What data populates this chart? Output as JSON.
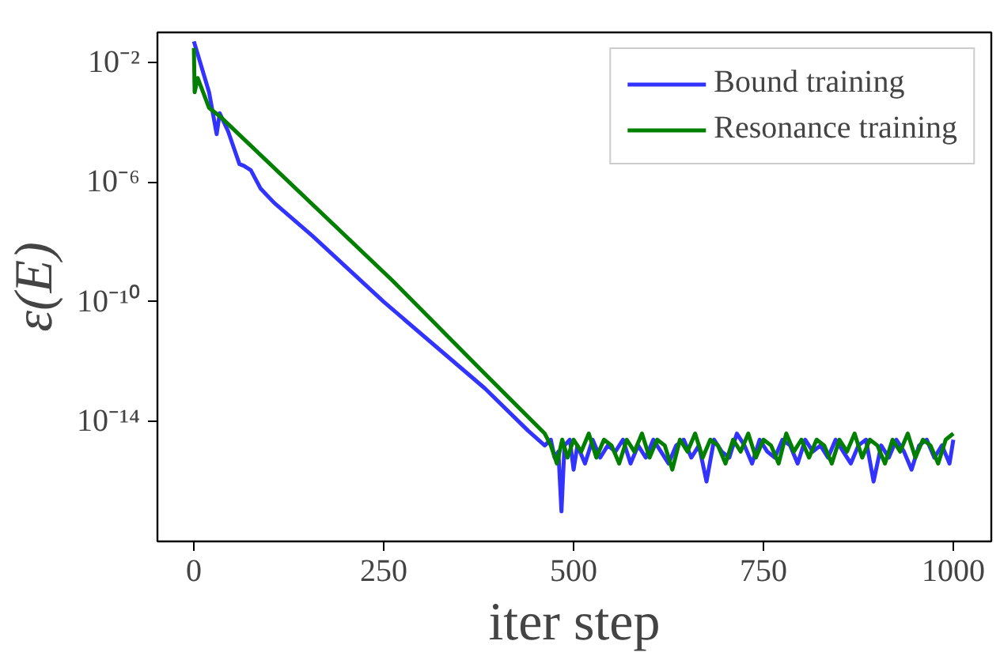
{
  "chart_data": {
    "type": "line",
    "xlabel": "iter step",
    "ylabel": "ε(E)",
    "log": "y",
    "legend": "top right",
    "grid": false,
    "marker": "none",
    "line_style": "solid",
    "xlim": [
      -48,
      1050
    ],
    "ylim": [
      1e-18,
      0.1
    ],
    "xticks": [
      0,
      250,
      500,
      750,
      1000
    ],
    "yticks": [
      {
        "value": 0.01,
        "label": "10⁻²"
      },
      {
        "value": 1e-06,
        "label": "10⁻⁶"
      },
      {
        "value": 1e-10,
        "label": "10⁻¹⁰"
      },
      {
        "value": 1e-14,
        "label": "10⁻¹⁴"
      }
    ],
    "series": [
      {
        "name": "Bound training",
        "color": "#3333ff",
        "x": [
          0,
          20,
          30,
          34,
          45,
          60,
          66,
          75,
          88,
          106,
          156,
          250,
          383,
          440,
          462,
          470,
          475,
          480,
          484,
          488,
          495,
          500,
          505,
          515,
          525,
          535,
          545,
          555,
          565,
          575,
          585,
          595,
          605,
          615,
          625,
          635,
          645,
          655,
          665,
          675,
          685,
          695,
          705,
          715,
          725,
          735,
          745,
          755,
          765,
          775,
          785,
          795,
          805,
          815,
          825,
          835,
          845,
          855,
          865,
          875,
          885,
          895,
          905,
          915,
          925,
          935,
          945,
          955,
          965,
          975,
          985,
          995,
          1000
        ],
        "values": [
          0.05,
          0.001,
          4e-05,
          0.0002,
          5e-05,
          4e-06,
          3.5e-06,
          2.5e-06,
          6e-07,
          2e-07,
          1.6e-08,
          1e-10,
          1.3e-13,
          5e-15,
          1.6e-15,
          2.5e-15,
          6.3e-16,
          1e-15,
          1e-17,
          1.6e-15,
          2.5e-15,
          2.5e-16,
          1.6e-15,
          4e-16,
          2.5e-15,
          6.3e-16,
          1.6e-15,
          1e-15,
          2.5e-15,
          4e-16,
          1.6e-15,
          6.3e-16,
          2.5e-15,
          1e-15,
          4e-16,
          1.6e-15,
          2.5e-15,
          6.3e-16,
          1.6e-15,
          1e-16,
          2.5e-15,
          1e-15,
          6.3e-16,
          4e-15,
          1.6e-15,
          4e-16,
          2.5e-15,
          1e-15,
          6.3e-16,
          2.5e-15,
          1.6e-15,
          4e-16,
          2.5e-15,
          1e-15,
          1.6e-15,
          6.3e-16,
          2.5e-15,
          1e-15,
          4e-16,
          1.6e-15,
          2.5e-15,
          1e-16,
          1.6e-15,
          6.3e-16,
          2.5e-15,
          1e-15,
          2.5e-16,
          1.6e-15,
          2.5e-15,
          6.3e-16,
          1.6e-15,
          4e-16,
          2.5e-15
        ]
      },
      {
        "name": "Resonance training",
        "color": "#007f00",
        "x": [
          0,
          1,
          5,
          20,
          34,
          262,
          383,
          462,
          470,
          478,
          485,
          492,
          500,
          510,
          520,
          530,
          540,
          550,
          560,
          570,
          580,
          590,
          600,
          610,
          620,
          630,
          640,
          650,
          660,
          670,
          680,
          690,
          700,
          710,
          720,
          730,
          740,
          750,
          760,
          770,
          780,
          790,
          800,
          810,
          820,
          830,
          840,
          850,
          860,
          870,
          880,
          890,
          900,
          910,
          920,
          930,
          940,
          950,
          960,
          970,
          980,
          990,
          1000
        ],
        "values": [
          0.03,
          0.001,
          0.003,
          0.0003,
          0.00016,
          5e-10,
          4e-13,
          4e-15,
          1.6e-15,
          4e-16,
          2.5e-15,
          6.3e-16,
          2.5e-15,
          1e-15,
          4e-15,
          6.3e-16,
          2.5e-15,
          1.6e-15,
          4e-16,
          2.5e-15,
          1e-15,
          4e-15,
          6.3e-16,
          2.5e-15,
          1.6e-15,
          2.5e-16,
          2.5e-15,
          1e-15,
          4e-15,
          6.3e-16,
          2.5e-15,
          1.6e-15,
          4e-16,
          2.5e-15,
          1e-15,
          4e-15,
          6.3e-16,
          2.5e-15,
          1.6e-15,
          4e-16,
          4e-15,
          1e-15,
          2.5e-15,
          6.3e-16,
          2.5e-15,
          1.6e-15,
          4e-16,
          2.5e-15,
          1e-15,
          4e-15,
          6.3e-16,
          2.5e-15,
          1.6e-15,
          4e-16,
          2.5e-15,
          1e-15,
          4e-15,
          6.3e-16,
          2.5e-15,
          1.6e-15,
          4e-16,
          2.5e-15,
          4e-15
        ]
      }
    ]
  }
}
